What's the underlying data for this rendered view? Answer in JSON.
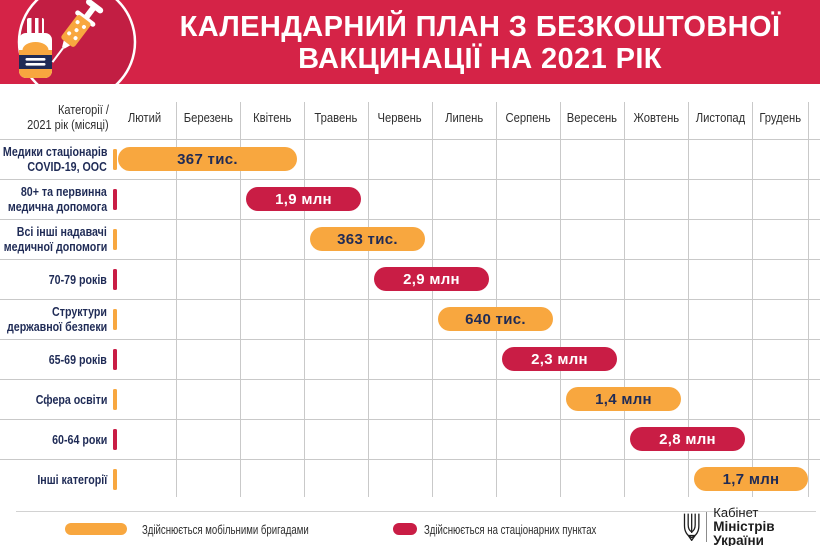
{
  "banner": {
    "title_line1": "КАЛЕНДАРНИЙ ПЛАН З БЕЗКОШТОВНОЇ",
    "title_line2": "ВАКЦИНАЦІЇ НА 2021 РІК",
    "icon": "vaccine-vial-and-syringe"
  },
  "table": {
    "corner_label_line1": "Категорії /",
    "corner_label_line2": "2021 рік (місяці)"
  },
  "chart_data": {
    "type": "gantt",
    "title": "КАЛЕНДАРНИЙ ПЛАН З БЕЗКОШТОВНОЇ ВАКЦИНАЦІЇ НА 2021 РІК",
    "months": [
      "Лютий",
      "Березень",
      "Квітень",
      "Травень",
      "Червень",
      "Липень",
      "Серпень",
      "Вересень",
      "Жовтень",
      "Листопад",
      "Грудень"
    ],
    "rows": [
      {
        "category": "Медики стаціонарів COVID-19, ООС",
        "label_lines": [
          "Медики стаціонарів",
          "COVID-19, ООС"
        ],
        "value": "367 тис.",
        "type": "mobile",
        "start_month": "Лютий",
        "end_month": "Квітень",
        "start_index": 0,
        "end_index": 2
      },
      {
        "category": "80+ та первинна медична допомога",
        "label_lines": [
          "80+ та первинна",
          "медична допомога"
        ],
        "value": "1,9 млн",
        "type": "stationary",
        "start_month": "Квітень",
        "end_month": "Травень",
        "start_index": 2,
        "end_index": 3
      },
      {
        "category": "Всі інші надавачі медичної допомоги",
        "label_lines": [
          "Всі інші надавачі",
          "медичної допомоги"
        ],
        "value": "363 тис.",
        "type": "mobile",
        "start_month": "Травень",
        "end_month": "Червень",
        "start_index": 3,
        "end_index": 4
      },
      {
        "category": "70-79 років",
        "label_lines": [
          "70-79 років"
        ],
        "value": "2,9 млн",
        "type": "stationary",
        "start_month": "Червень",
        "end_month": "Липень",
        "start_index": 4,
        "end_index": 5
      },
      {
        "category": "Структури державної безпеки",
        "label_lines": [
          "Структури",
          "державної безпеки"
        ],
        "value": "640 тис.",
        "type": "mobile",
        "start_month": "Липень",
        "end_month": "Серпень",
        "start_index": 5,
        "end_index": 6
      },
      {
        "category": "65-69 років",
        "label_lines": [
          "65-69 років"
        ],
        "value": "2,3 млн",
        "type": "stationary",
        "start_month": "Серпень",
        "end_month": "Вересень",
        "start_index": 6,
        "end_index": 7
      },
      {
        "category": "Сфера освіти",
        "label_lines": [
          "Сфера освіти"
        ],
        "value": "1,4 млн",
        "type": "mobile",
        "start_month": "Вересень",
        "end_month": "Жовтень",
        "start_index": 7,
        "end_index": 8
      },
      {
        "category": "60-64 роки",
        "label_lines": [
          "60-64 роки"
        ],
        "value": "2,8 млн",
        "type": "stationary",
        "start_month": "Жовтень",
        "end_month": "Листопад",
        "start_index": 8,
        "end_index": 9
      },
      {
        "category": "Інші категорії",
        "label_lines": [
          "Інші категорії"
        ],
        "value": "1,7 млн",
        "type": "mobile",
        "start_month": "Листопад",
        "end_month": "Грудень",
        "start_index": 9,
        "end_index": 10
      }
    ],
    "legend": [
      {
        "label": "Здійснюється мобільними бригадами",
        "type": "mobile",
        "color": "#f8a73f"
      },
      {
        "label": "Здійснюється на стаціонарних пунктах",
        "type": "stationary",
        "color": "#c91d45"
      }
    ],
    "legend_position": "bottom",
    "grid": true
  },
  "footer": {
    "logo_line1": "Кабінет",
    "logo_line2": "Міністрів України"
  },
  "colors": {
    "banner": "#d52347",
    "circle": "#c21e43",
    "red": "#c91d45",
    "orange": "#f8a73f",
    "navy": "#1f2b56",
    "grid": "#c9c9c9"
  }
}
